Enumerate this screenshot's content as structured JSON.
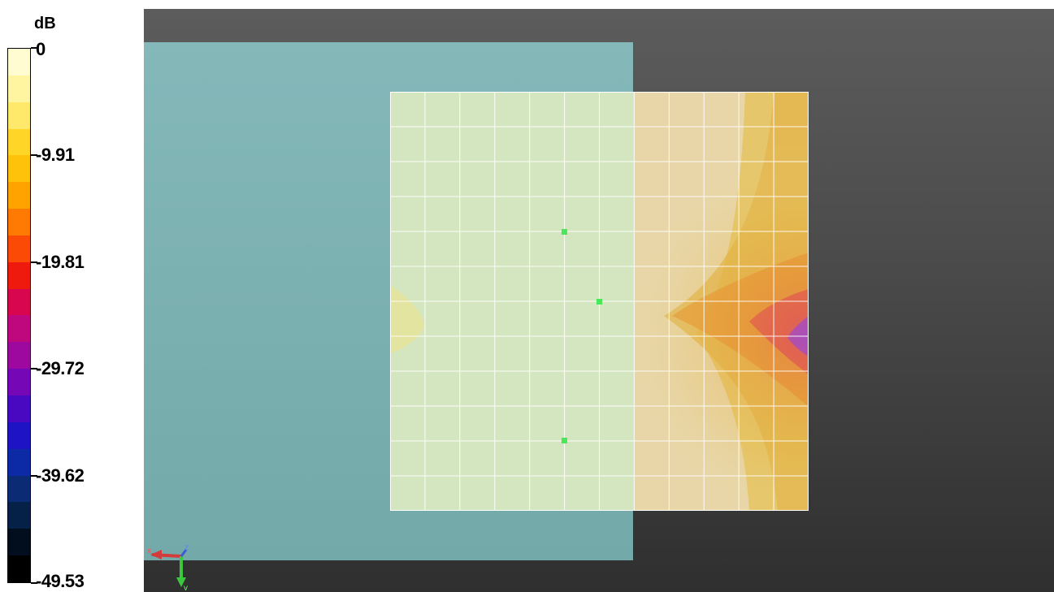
{
  "legend": {
    "unit": "dB",
    "labels": [
      "0",
      "-9.91",
      "-19.81",
      "-29.72",
      "-39.62",
      "-49.53"
    ],
    "colors": [
      "#fffcd2",
      "#fff5a0",
      "#ffe96a",
      "#ffd628",
      "#ffc20b",
      "#ffa301",
      "#ff7a02",
      "#fa4a05",
      "#ee1a0e",
      "#d8064e",
      "#c0087e",
      "#9d089e",
      "#7607b6",
      "#4909c0",
      "#1e14c6",
      "#0d2aa6",
      "#0b2c74",
      "#062148",
      "#020d1e",
      "#000000"
    ]
  },
  "viewport": {
    "background_top": "#5c5c5c",
    "background_bottom": "#2f2f2f",
    "phantom_color": "#7db3b4",
    "grid_color": "#ffffff",
    "probe_marker_color": "#49e85a",
    "probe_markers": 3,
    "axes": {
      "x_label": "x",
      "y_label": "y",
      "z_label": "z"
    }
  }
}
